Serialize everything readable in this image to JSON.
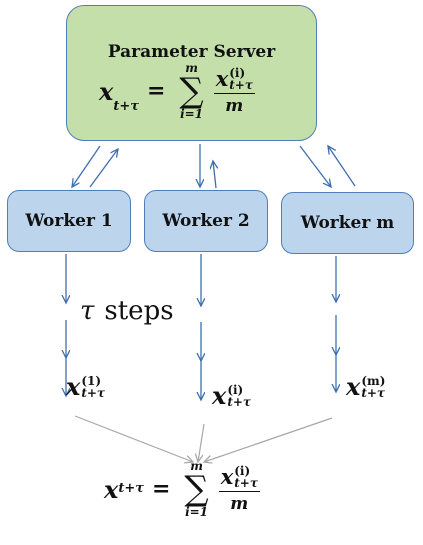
{
  "server": {
    "title": "Parameter Server",
    "lhs_var": "x",
    "lhs_sub": "t+τ",
    "sum_sign": "∑",
    "sum_upper": "m",
    "sum_lower": "i=1",
    "num_var": "x",
    "num_sup": "(i)",
    "num_sub": "t+τ",
    "den": "m"
  },
  "workers": [
    {
      "label": "Worker 1"
    },
    {
      "label": "Worker 2"
    },
    {
      "label": "Worker m"
    }
  ],
  "steps_label": {
    "tau": "τ",
    "text": "steps"
  },
  "outputs": [
    {
      "var": "x",
      "sup": "(1)",
      "sub": "t+τ"
    },
    {
      "var": "x",
      "sup": "(i)",
      "sub": "t+τ"
    },
    {
      "var": "x",
      "sup": "(m)",
      "sub": "t+τ"
    }
  ],
  "bottom_formula": {
    "lhs_var": "x",
    "lhs_sub": "t+τ",
    "sum_sign": "∑",
    "sum_upper": "m",
    "sum_lower": "i=1",
    "num_var": "x",
    "num_sup": "(i)",
    "num_sub": "t+τ",
    "den": "m"
  },
  "colors": {
    "server_fill": "#c4dfa9",
    "worker_fill": "#bcd4ec",
    "border": "#4f7fb8",
    "arrow_blue": "#3d6fb0",
    "arrow_gray": "#a8a8a8"
  }
}
